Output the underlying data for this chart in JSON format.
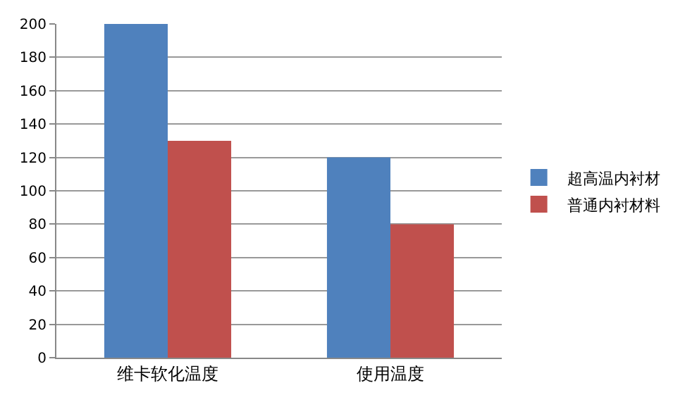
{
  "chart_data": {
    "type": "bar",
    "categories": [
      "维卡软化温度",
      "使用温度"
    ],
    "series": [
      {
        "name": "超高温内衬材",
        "color": "#4f81bd",
        "values": [
          200,
          120
        ]
      },
      {
        "name": "普通内衬材料",
        "color": "#c0504d",
        "values": [
          130,
          80
        ]
      }
    ],
    "ylim": [
      0,
      200
    ],
    "yticks": [
      0,
      20,
      40,
      60,
      80,
      100,
      120,
      140,
      160,
      180,
      200
    ],
    "grid": "y",
    "legend": "right"
  }
}
